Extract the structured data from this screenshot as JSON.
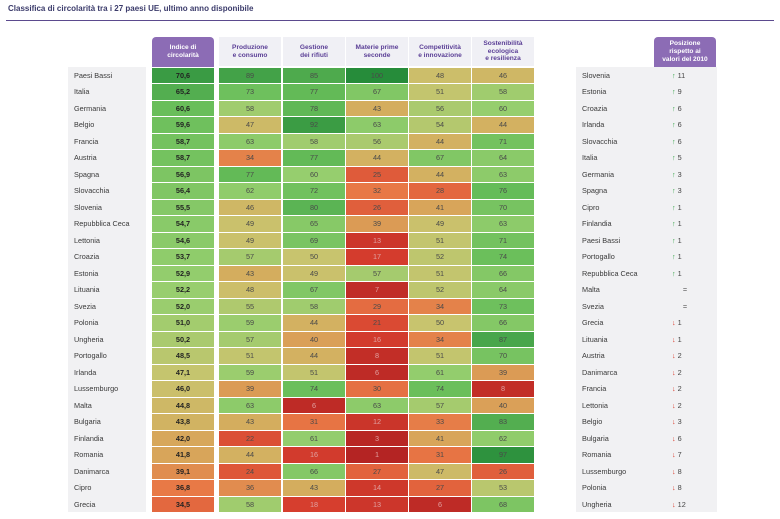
{
  "title": "Classifica di circolarità tra i 27 paesi UE, ultimo anno disponibile",
  "headers": {
    "index": "Indice di\ncircolarità",
    "production": "Produzione\ne consumo",
    "waste": "Gestione\ndei rifiuti",
    "secondary": "Materie prime\nseconde",
    "competitiveness": "Competitività\ne innovazione",
    "sustainability": "Sostenibilità\necologica\ne resilienza",
    "position": "Posizione\nrispetto ai\nvalori del 2010"
  },
  "chart_data": {
    "type": "table",
    "columns": [
      "Indice di circolarità",
      "Produzione e consumo",
      "Gestione dei rifiuti",
      "Materie prime seconde",
      "Competitività e innovazione",
      "Sostenibilità ecologica e resilienza"
    ],
    "rows": [
      {
        "country": "Paesi Bassi",
        "index": "70,6",
        "values": [
          89,
          85,
          100,
          48,
          46
        ]
      },
      {
        "country": "Italia",
        "index": "65,2",
        "values": [
          73,
          77,
          67,
          51,
          58
        ]
      },
      {
        "country": "Germania",
        "index": "60,6",
        "values": [
          58,
          78,
          43,
          56,
          60
        ]
      },
      {
        "country": "Belgio",
        "index": "59,6",
        "values": [
          47,
          92,
          63,
          54,
          44
        ]
      },
      {
        "country": "Francia",
        "index": "58,7",
        "values": [
          63,
          58,
          56,
          44,
          71
        ]
      },
      {
        "country": "Austria",
        "index": "58,7",
        "values": [
          34,
          77,
          44,
          67,
          64
        ]
      },
      {
        "country": "Spagna",
        "index": "56,9",
        "values": [
          77,
          60,
          25,
          44,
          63
        ]
      },
      {
        "country": "Slovacchia",
        "index": "56,4",
        "values": [
          62,
          72,
          32,
          28,
          76
        ]
      },
      {
        "country": "Slovenia",
        "index": "55,5",
        "values": [
          46,
          80,
          26,
          41,
          70
        ]
      },
      {
        "country": "Repubblica Ceca",
        "index": "54,7",
        "values": [
          49,
          65,
          39,
          49,
          63
        ]
      },
      {
        "country": "Lettonia",
        "index": "54,6",
        "values": [
          49,
          69,
          13,
          51,
          71
        ]
      },
      {
        "country": "Croazia",
        "index": "53,7",
        "values": [
          57,
          50,
          17,
          52,
          74
        ]
      },
      {
        "country": "Estonia",
        "index": "52,9",
        "values": [
          43,
          49,
          57,
          51,
          66
        ]
      },
      {
        "country": "Lituania",
        "index": "52,2",
        "values": [
          48,
          67,
          7,
          52,
          64
        ]
      },
      {
        "country": "Svezia",
        "index": "52,0",
        "values": [
          55,
          58,
          29,
          34,
          73
        ]
      },
      {
        "country": "Polonia",
        "index": "51,0",
        "values": [
          59,
          44,
          21,
          50,
          66
        ]
      },
      {
        "country": "Ungheria",
        "index": "50,2",
        "values": [
          57,
          40,
          16,
          34,
          87
        ]
      },
      {
        "country": "Portogallo",
        "index": "48,5",
        "values": [
          51,
          44,
          8,
          51,
          70
        ]
      },
      {
        "country": "Irlanda",
        "index": "47,1",
        "values": [
          59,
          51,
          6,
          61,
          39
        ]
      },
      {
        "country": "Lussemburgo",
        "index": "46,0",
        "values": [
          39,
          74,
          30,
          74,
          8
        ]
      },
      {
        "country": "Malta",
        "index": "44,8",
        "values": [
          63,
          6,
          63,
          57,
          40
        ]
      },
      {
        "country": "Bulgaria",
        "index": "43,8",
        "values": [
          43,
          31,
          12,
          33,
          83
        ]
      },
      {
        "country": "Finlandia",
        "index": "42,0",
        "values": [
          22,
          61,
          3,
          41,
          62
        ]
      },
      {
        "country": "Romania",
        "index": "41,8",
        "values": [
          44,
          16,
          1,
          31,
          97
        ]
      },
      {
        "country": "Danimarca",
        "index": "39,1",
        "values": [
          24,
          66,
          27,
          47,
          26
        ]
      },
      {
        "country": "Cipro",
        "index": "36,8",
        "values": [
          36,
          43,
          14,
          27,
          53
        ]
      },
      {
        "country": "Grecia",
        "index": "34,5",
        "values": [
          58,
          18,
          13,
          6,
          68
        ]
      }
    ],
    "position": [
      {
        "country": "Slovenia",
        "dir": "up",
        "change": "11"
      },
      {
        "country": "Estonia",
        "dir": "up",
        "change": "9"
      },
      {
        "country": "Croazia",
        "dir": "up",
        "change": "6"
      },
      {
        "country": "Irlanda",
        "dir": "up",
        "change": "6"
      },
      {
        "country": "Slovacchia",
        "dir": "up",
        "change": "6"
      },
      {
        "country": "Italia",
        "dir": "up",
        "change": "5"
      },
      {
        "country": "Germania",
        "dir": "up",
        "change": "3"
      },
      {
        "country": "Spagna",
        "dir": "up",
        "change": "3"
      },
      {
        "country": "Cipro",
        "dir": "up",
        "change": "1"
      },
      {
        "country": "Finlandia",
        "dir": "up",
        "change": "1"
      },
      {
        "country": "Paesi Bassi",
        "dir": "up",
        "change": "1"
      },
      {
        "country": "Portogallo",
        "dir": "up",
        "change": "1"
      },
      {
        "country": "Repubblica Ceca",
        "dir": "up",
        "change": "1"
      },
      {
        "country": "Malta",
        "dir": "eq",
        "change": "="
      },
      {
        "country": "Svezia",
        "dir": "eq",
        "change": "="
      },
      {
        "country": "Grecia",
        "dir": "down",
        "change": "1"
      },
      {
        "country": "Lituania",
        "dir": "down",
        "change": "1"
      },
      {
        "country": "Austria",
        "dir": "down",
        "change": "2"
      },
      {
        "country": "Danimarca",
        "dir": "down",
        "change": "2"
      },
      {
        "country": "Francia",
        "dir": "down",
        "change": "2"
      },
      {
        "country": "Lettonia",
        "dir": "down",
        "change": "2"
      },
      {
        "country": "Belgio",
        "dir": "down",
        "change": "3"
      },
      {
        "country": "Bulgaria",
        "dir": "down",
        "change": "6"
      },
      {
        "country": "Romania",
        "dir": "down",
        "change": "7"
      },
      {
        "country": "Lussemburgo",
        "dir": "down",
        "change": "8"
      },
      {
        "country": "Polonia",
        "dir": "down",
        "change": "8"
      },
      {
        "country": "Ungheria",
        "dir": "down",
        "change": "12"
      }
    ]
  }
}
